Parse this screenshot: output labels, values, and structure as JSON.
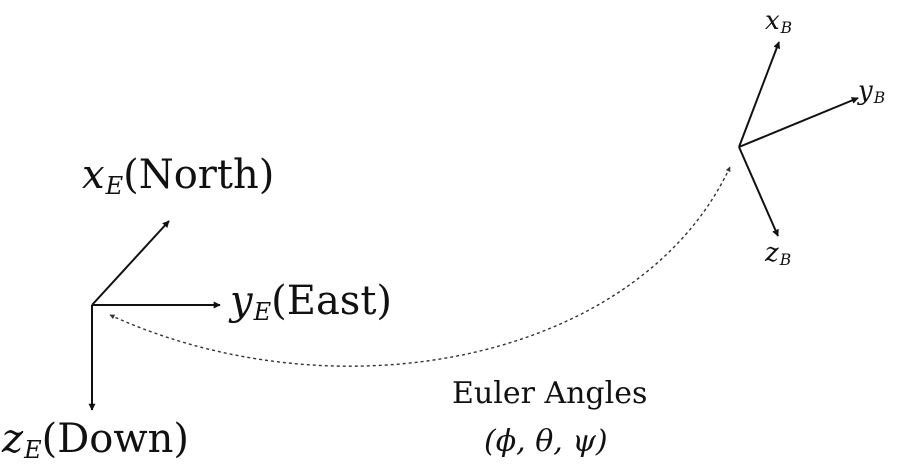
{
  "earth_frame": {
    "x_axis": {
      "symbol": "x",
      "subscript": "E",
      "direction": "(North)"
    },
    "y_axis": {
      "symbol": "y",
      "subscript": "E",
      "direction": "(East)"
    },
    "z_axis": {
      "symbol": "z",
      "subscript": "E",
      "direction": "(Down)"
    }
  },
  "body_frame": {
    "x_axis": {
      "symbol": "x",
      "subscript": "B"
    },
    "y_axis": {
      "symbol": "y",
      "subscript": "B"
    },
    "z_axis": {
      "symbol": "z",
      "subscript": "B"
    }
  },
  "relation": {
    "title": "Euler Angles",
    "symbols": "(ϕ, θ, ψ)"
  },
  "colors": {
    "ink": "#111111"
  }
}
